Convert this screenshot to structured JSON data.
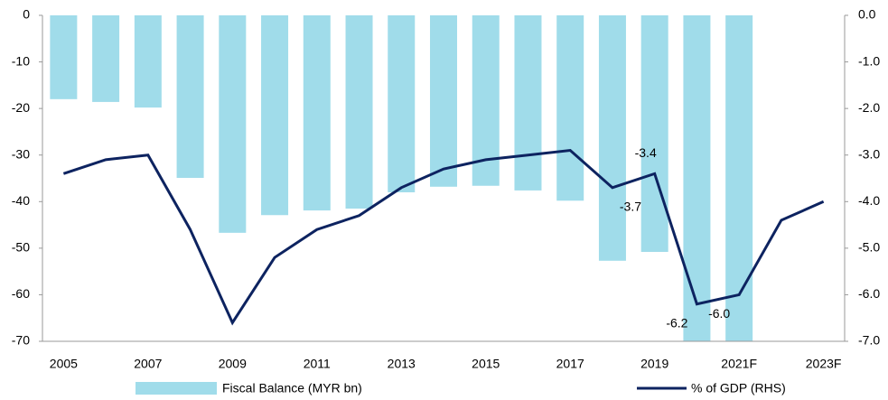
{
  "chart_data": {
    "type": "bar-line",
    "categories": [
      "2005",
      null,
      "2007",
      null,
      "2009",
      null,
      "2011",
      null,
      "2013",
      null,
      "2015",
      null,
      "2017",
      null,
      "2019",
      null,
      "2021F",
      null,
      "2023F"
    ],
    "series": [
      {
        "name": "Fiscal Balance (MYR bn)",
        "type": "bar",
        "color": "#a0dcea",
        "values": [
          -18.0,
          -18.6,
          -19.8,
          -34.9,
          -46.7,
          -42.9,
          -41.9,
          -41.5,
          -38.0,
          -36.8,
          -36.6,
          -37.6,
          -39.8,
          -52.7,
          -50.8,
          -70,
          -70,
          null,
          null
        ]
      },
      {
        "name": "% of GDP (RHS)",
        "type": "line",
        "axis": "y2",
        "color": "#0d2360",
        "values": [
          -3.4,
          -3.1,
          -3.0,
          -4.6,
          -6.6,
          -5.2,
          -4.6,
          -4.3,
          -3.7,
          -3.3,
          -3.1,
          -3.0,
          -2.9,
          -3.7,
          -3.4,
          -6.2,
          -6.0,
          -4.4,
          -4.0
        ],
        "value_labels": [
          null,
          null,
          null,
          null,
          null,
          null,
          null,
          null,
          null,
          null,
          null,
          null,
          null,
          "-3.7",
          "-3.4",
          "-6.2",
          "-6.0",
          null,
          null
        ]
      }
    ],
    "ylim": [
      -70,
      0
    ],
    "yticks": [
      0,
      -10,
      -20,
      -30,
      -40,
      -50,
      -60,
      -70
    ],
    "y2lim": [
      -7,
      0
    ],
    "y2ticks": [
      {
        "value": 0,
        "label": "0.0"
      },
      {
        "value": -1,
        "label": "-1.0"
      },
      {
        "value": -2,
        "label": "-2.0"
      },
      {
        "value": -3,
        "label": "-3.0"
      },
      {
        "value": -4,
        "label": "-4.0"
      },
      {
        "value": -5,
        "label": "-5.0"
      },
      {
        "value": -6,
        "label": "-6.0"
      },
      {
        "value": -7,
        "label": "-7.0"
      }
    ],
    "legend": "bottom"
  }
}
